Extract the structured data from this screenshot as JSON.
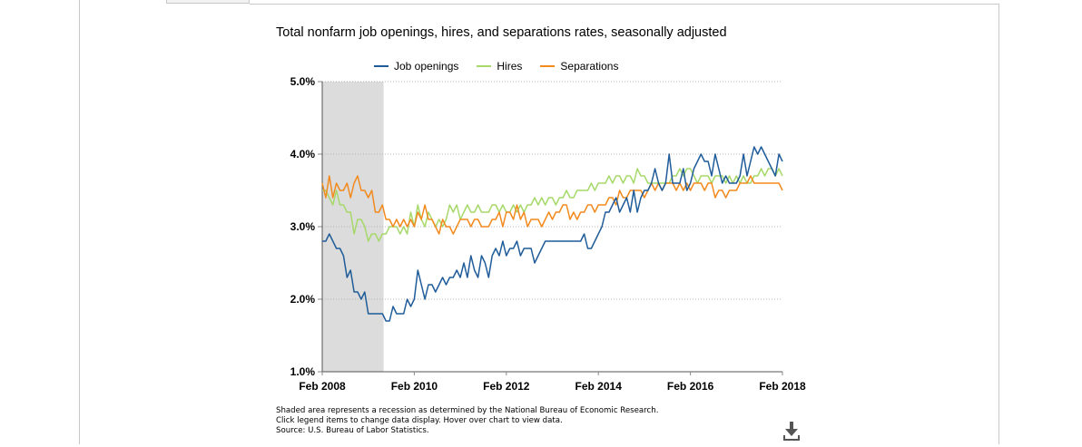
{
  "title": "Total nonfarm job openings, hires, and separations rates, seasonally adjusted",
  "legend": {
    "items": [
      {
        "label": "Job openings",
        "color": "#1f5c99"
      },
      {
        "label": "Hires",
        "color": "#a6d96a"
      },
      {
        "label": "Separations",
        "color": "#f28a1e"
      }
    ]
  },
  "notes": {
    "line1": "Shaded area represents a recession as determined by the National Bureau of Economic Research.",
    "line2": "Click legend items to change data display. Hover over chart to view data.",
    "line3": "Source: U.S. Bureau of Labor Statistics."
  },
  "download": {
    "icon": "download-icon"
  },
  "chart_data": {
    "type": "line",
    "title": "Total nonfarm job openings, hires, and separations rates, seasonally adjusted",
    "x_start": "Feb 2008",
    "x_end": "Feb 2018",
    "x_ticks": [
      "Feb 2008",
      "Feb 2010",
      "Feb 2012",
      "Feb 2014",
      "Feb 2016",
      "Feb 2018"
    ],
    "y_ticks": [
      "1.0%",
      "2.0%",
      "3.0%",
      "4.0%",
      "5.0%"
    ],
    "ylim": [
      1.0,
      5.0
    ],
    "grid": "horizontal dotted",
    "legend_position": "top",
    "recession": {
      "start": "Feb 2008",
      "end": "Jun 2009",
      "color": "#dcdcdc"
    },
    "series": [
      {
        "name": "Job openings",
        "color": "#1f5c99",
        "values": [
          2.8,
          2.8,
          2.9,
          2.8,
          2.7,
          2.7,
          2.6,
          2.3,
          2.4,
          2.1,
          2.1,
          2.0,
          2.1,
          1.8,
          1.8,
          1.8,
          1.8,
          1.8,
          1.7,
          1.7,
          1.9,
          1.8,
          1.8,
          1.8,
          2.0,
          1.9,
          2.0,
          2.4,
          2.2,
          2.0,
          2.2,
          2.2,
          2.1,
          2.2,
          2.3,
          2.2,
          2.3,
          2.3,
          2.4,
          2.3,
          2.5,
          2.3,
          2.6,
          2.4,
          2.3,
          2.6,
          2.5,
          2.3,
          2.6,
          2.7,
          2.6,
          2.8,
          2.6,
          2.7,
          2.7,
          2.8,
          2.6,
          2.7,
          2.7,
          2.7,
          2.5,
          2.6,
          2.7,
          2.8,
          2.8,
          2.8,
          2.8,
          2.8,
          2.8,
          2.8,
          2.8,
          2.8,
          2.8,
          2.8,
          2.9,
          2.7,
          2.7,
          2.8,
          2.9,
          3.0,
          3.2,
          3.2,
          3.3,
          3.4,
          3.2,
          3.3,
          3.4,
          3.2,
          3.5,
          3.2,
          3.4,
          3.5,
          3.5,
          3.6,
          3.8,
          3.6,
          3.5,
          3.6,
          4.0,
          3.6,
          3.6,
          3.6,
          3.8,
          3.5,
          3.6,
          3.8,
          3.9,
          4.0,
          3.9,
          3.9,
          3.7,
          4.0,
          3.8,
          3.6,
          3.7,
          3.6,
          3.6,
          3.6,
          3.7,
          4.0,
          3.7,
          3.9,
          4.1,
          4.0,
          4.1,
          4.0,
          3.9,
          3.8,
          3.7,
          4.0,
          3.9
        ]
      },
      {
        "name": "Hires",
        "color": "#a6d96a",
        "values": [
          3.5,
          3.5,
          3.4,
          3.3,
          3.5,
          3.3,
          3.3,
          3.2,
          3.2,
          2.9,
          3.1,
          3.1,
          3.0,
          2.8,
          2.9,
          2.9,
          2.8,
          2.9,
          2.9,
          3.0,
          3.0,
          3.0,
          2.9,
          3.0,
          2.9,
          3.2,
          3.0,
          3.3,
          3.1,
          3.0,
          3.2,
          3.1,
          3.0,
          3.1,
          3.0,
          3.1,
          3.3,
          3.2,
          3.3,
          3.1,
          3.2,
          3.3,
          3.2,
          3.2,
          3.3,
          3.2,
          3.2,
          3.2,
          3.3,
          3.3,
          3.2,
          3.3,
          3.2,
          3.2,
          3.3,
          3.2,
          3.3,
          3.2,
          3.3,
          3.3,
          3.4,
          3.3,
          3.4,
          3.3,
          3.4,
          3.4,
          3.3,
          3.4,
          3.4,
          3.5,
          3.4,
          3.4,
          3.5,
          3.5,
          3.5,
          3.5,
          3.6,
          3.5,
          3.6,
          3.6,
          3.6,
          3.7,
          3.6,
          3.7,
          3.7,
          3.6,
          3.7,
          3.7,
          3.6,
          3.8,
          3.7,
          3.7,
          3.6,
          3.6,
          3.6,
          3.6,
          3.6,
          3.6,
          3.6,
          3.7,
          3.7,
          3.8,
          3.7,
          3.8,
          3.8,
          3.7,
          3.6,
          3.7,
          3.7,
          3.7,
          3.6,
          3.7,
          3.7,
          3.7,
          3.6,
          3.7,
          3.6,
          3.7,
          3.6,
          3.7,
          3.6,
          3.6,
          3.7,
          3.7,
          3.8,
          3.7,
          3.8,
          3.8,
          3.7,
          3.8,
          3.7
        ]
      },
      {
        "name": "Separations",
        "color": "#f28a1e",
        "values": [
          3.6,
          3.4,
          3.7,
          3.4,
          3.6,
          3.5,
          3.5,
          3.6,
          3.4,
          3.6,
          3.7,
          3.5,
          3.5,
          3.4,
          3.5,
          3.2,
          3.2,
          3.3,
          3.1,
          3.1,
          3.0,
          3.1,
          3.0,
          3.1,
          3.0,
          3.1,
          3.0,
          3.2,
          3.1,
          3.3,
          3.1,
          3.1,
          3.0,
          2.9,
          3.1,
          3.0,
          3.0,
          2.9,
          3.0,
          3.1,
          3.1,
          3.1,
          3.0,
          3.1,
          3.1,
          3.0,
          3.0,
          3.0,
          3.1,
          3.1,
          3.2,
          3.0,
          3.2,
          3.2,
          3.1,
          3.3,
          3.1,
          3.2,
          3.0,
          3.1,
          3.1,
          3.1,
          3.0,
          3.1,
          3.2,
          3.1,
          3.2,
          3.2,
          3.3,
          3.3,
          3.1,
          3.2,
          3.1,
          3.2,
          3.2,
          3.3,
          3.3,
          3.2,
          3.3,
          3.3,
          3.3,
          3.4,
          3.4,
          3.3,
          3.5,
          3.4,
          3.4,
          3.5,
          3.5,
          3.5,
          3.5,
          3.4,
          3.5,
          3.6,
          3.5,
          3.6,
          3.5,
          3.6,
          3.6,
          3.6,
          3.5,
          3.6,
          3.5,
          3.6,
          3.5,
          3.6,
          3.6,
          3.6,
          3.5,
          3.6,
          3.6,
          3.4,
          3.5,
          3.5,
          3.4,
          3.5,
          3.5,
          3.5,
          3.6,
          3.6,
          3.6,
          3.7,
          3.6,
          3.6,
          3.6,
          3.6,
          3.6,
          3.6,
          3.6,
          3.6,
          3.5
        ]
      }
    ]
  }
}
